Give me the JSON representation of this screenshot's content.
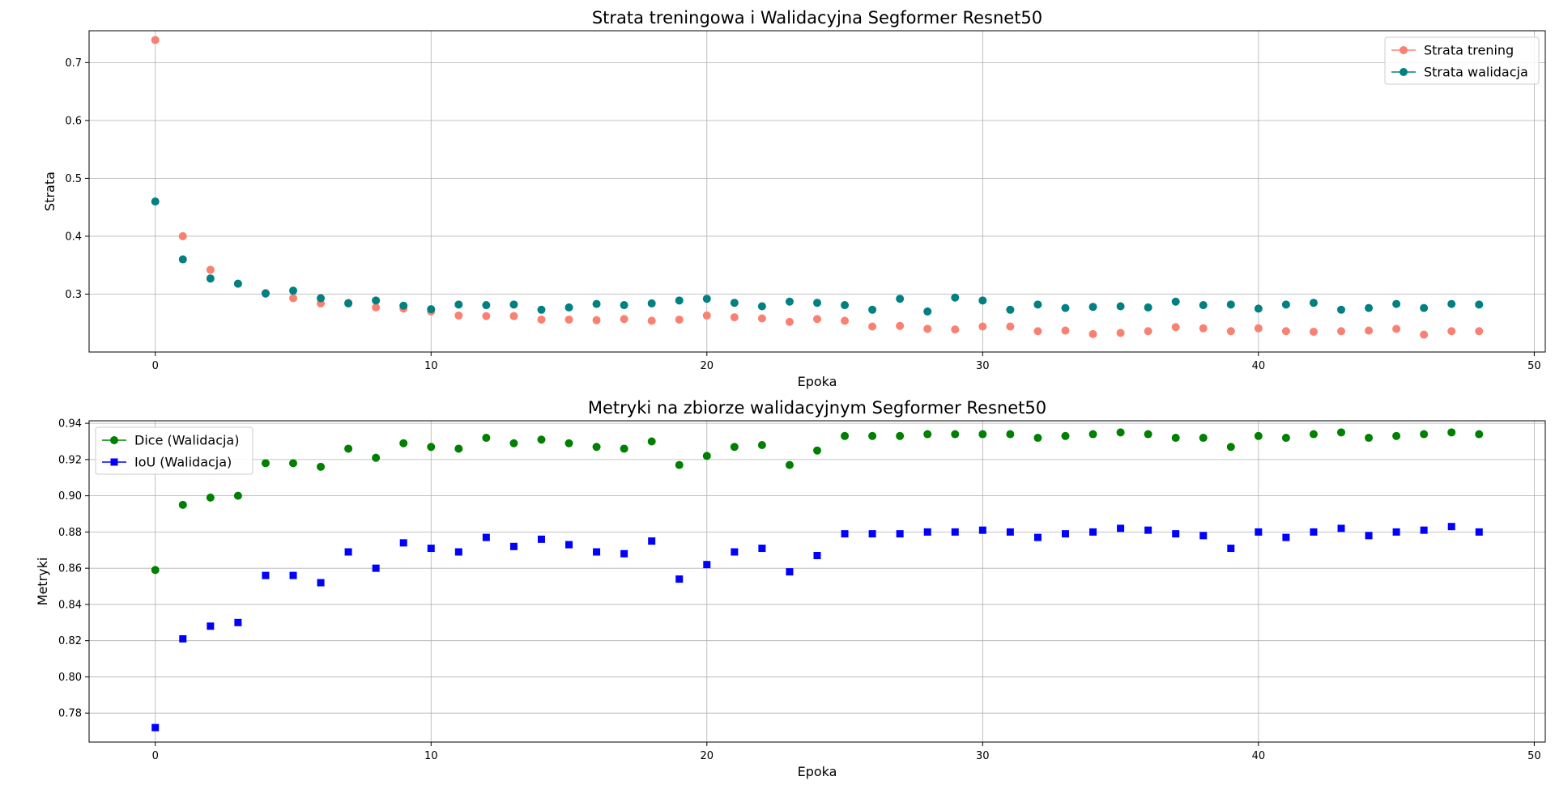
{
  "chart_data": [
    {
      "type": "scatter",
      "title": "Strata treningowa i Walidacyjna Segformer Resnet50",
      "xlabel": "Epoka",
      "ylabel": "Strata",
      "xlim": [
        -2.4,
        50.4
      ],
      "ylim": [
        0.2,
        0.755
      ],
      "xticks": [
        0,
        10,
        20,
        30,
        40,
        50
      ],
      "yticks": [
        0.3,
        0.4,
        0.5,
        0.6,
        0.7
      ],
      "ytick_labels": [
        "0.3",
        "0.4",
        "0.5",
        "0.6",
        "0.7"
      ],
      "grid": true,
      "legend_position": "top-right",
      "x": [
        0,
        1,
        2,
        3,
        4,
        5,
        6,
        7,
        8,
        9,
        10,
        11,
        12,
        13,
        14,
        15,
        16,
        17,
        18,
        19,
        20,
        21,
        22,
        23,
        24,
        25,
        26,
        27,
        28,
        29,
        30,
        31,
        32,
        33,
        34,
        35,
        36,
        37,
        38,
        39,
        40,
        41,
        42,
        43,
        44,
        45,
        46,
        47,
        48
      ],
      "series": [
        {
          "name": "Strata trening",
          "color": "#fa8072",
          "marker": "circle",
          "values": [
            0.739,
            0.4,
            0.342,
            0.318,
            0.302,
            0.293,
            0.284,
            0.285,
            0.277,
            0.275,
            0.27,
            0.263,
            0.262,
            0.262,
            0.256,
            0.256,
            0.255,
            0.257,
            0.254,
            0.256,
            0.263,
            0.26,
            0.258,
            0.252,
            0.257,
            0.254,
            0.244,
            0.245,
            0.24,
            0.239,
            0.244,
            0.244,
            0.236,
            0.237,
            0.231,
            0.233,
            0.236,
            0.243,
            0.241,
            0.236,
            0.241,
            0.236,
            0.235,
            0.236,
            0.237,
            0.24,
            0.23,
            0.236,
            0.236
          ]
        },
        {
          "name": "Strata walidacja",
          "color": "#008080",
          "marker": "circle",
          "values": [
            0.46,
            0.36,
            0.327,
            0.318,
            0.301,
            0.306,
            0.293,
            0.284,
            0.289,
            0.28,
            0.274,
            0.282,
            0.281,
            0.282,
            0.273,
            0.277,
            0.283,
            0.281,
            0.284,
            0.289,
            0.292,
            0.285,
            0.279,
            0.287,
            0.285,
            0.281,
            0.273,
            0.292,
            0.27,
            0.294,
            0.289,
            0.273,
            0.282,
            0.276,
            0.278,
            0.279,
            0.277,
            0.287,
            0.281,
            0.282,
            0.275,
            0.282,
            0.285,
            0.273,
            0.276,
            0.283,
            0.276,
            0.283,
            0.282
          ]
        }
      ]
    },
    {
      "type": "scatter",
      "title": "Metryki na zbiorze walidacyjnym Segformer Resnet50",
      "xlabel": "Epoka",
      "ylabel": "Metryki",
      "xlim": [
        -2.4,
        50.4
      ],
      "ylim": [
        0.764,
        0.9414
      ],
      "xticks": [
        0,
        10,
        20,
        30,
        40,
        50
      ],
      "yticks": [
        0.78,
        0.8,
        0.82,
        0.84,
        0.86,
        0.88,
        0.9,
        0.92,
        0.94
      ],
      "ytick_labels": [
        "0.78",
        "0.80",
        "0.82",
        "0.84",
        "0.86",
        "0.88",
        "0.90",
        "0.92",
        "0.94"
      ],
      "grid": true,
      "legend_position": "top-left",
      "x": [
        0,
        1,
        2,
        3,
        4,
        5,
        6,
        7,
        8,
        9,
        10,
        11,
        12,
        13,
        14,
        15,
        16,
        17,
        18,
        19,
        20,
        21,
        22,
        23,
        24,
        25,
        26,
        27,
        28,
        29,
        30,
        31,
        32,
        33,
        34,
        35,
        36,
        37,
        38,
        39,
        40,
        41,
        42,
        43,
        44,
        45,
        46,
        47,
        48
      ],
      "series": [
        {
          "name": "Dice (Walidacja)",
          "color": "#008000",
          "marker": "circle",
          "values": [
            0.859,
            0.895,
            0.899,
            0.9,
            0.918,
            0.918,
            0.916,
            0.926,
            0.921,
            0.929,
            0.927,
            0.926,
            0.932,
            0.929,
            0.931,
            0.929,
            0.927,
            0.926,
            0.93,
            0.917,
            0.922,
            0.927,
            0.928,
            0.917,
            0.925,
            0.933,
            0.933,
            0.933,
            0.934,
            0.934,
            0.934,
            0.934,
            0.932,
            0.933,
            0.934,
            0.935,
            0.934,
            0.932,
            0.932,
            0.927,
            0.933,
            0.932,
            0.934,
            0.935,
            0.932,
            0.933,
            0.934,
            0.935,
            0.934
          ]
        },
        {
          "name": "IoU (Walidacja)",
          "color": "#0000ff",
          "marker": "square",
          "values": [
            0.772,
            0.821,
            0.828,
            0.83,
            0.856,
            0.856,
            0.852,
            0.869,
            0.86,
            0.874,
            0.871,
            0.869,
            0.877,
            0.872,
            0.876,
            0.873,
            0.869,
            0.868,
            0.875,
            0.854,
            0.862,
            0.869,
            0.871,
            0.858,
            0.867,
            0.879,
            0.879,
            0.879,
            0.88,
            0.88,
            0.881,
            0.88,
            0.877,
            0.879,
            0.88,
            0.882,
            0.881,
            0.879,
            0.878,
            0.871,
            0.88,
            0.877,
            0.88,
            0.882,
            0.878,
            0.88,
            0.881,
            0.883,
            0.88
          ]
        }
      ]
    }
  ]
}
